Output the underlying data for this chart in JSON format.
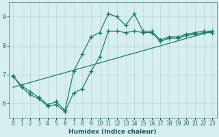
{
  "title": "",
  "xlabel": "Humidex (Indice chaleur)",
  "xlim": [
    -0.5,
    23.5
  ],
  "ylim": [
    5.5,
    9.5
  ],
  "yticks": [
    6,
    7,
    8,
    9
  ],
  "xticks": [
    0,
    1,
    2,
    3,
    4,
    5,
    6,
    7,
    8,
    9,
    10,
    11,
    12,
    13,
    14,
    15,
    16,
    17,
    18,
    19,
    20,
    21,
    22,
    23
  ],
  "bg_color": "#d6eeee",
  "line_color": "#1a7a6e",
  "grid_color": "#b8d8d8",
  "upper_x": [
    0,
    1,
    2,
    3,
    4,
    5,
    6,
    7,
    8,
    9,
    10,
    11,
    12,
    13,
    14,
    15,
    16,
    17,
    18,
    19,
    20,
    21,
    22,
    23
  ],
  "upper_y": [
    6.95,
    6.6,
    6.4,
    6.2,
    5.95,
    6.05,
    5.75,
    7.1,
    7.7,
    8.3,
    8.45,
    9.1,
    9.0,
    8.7,
    9.1,
    8.5,
    8.5,
    8.2,
    8.3,
    8.3,
    8.4,
    8.45,
    8.5,
    8.5
  ],
  "lower_x": [
    0,
    1,
    2,
    3,
    4,
    5,
    6,
    7,
    8,
    9,
    10,
    11,
    12,
    13,
    14,
    15,
    16,
    17,
    18,
    19,
    20,
    21,
    22,
    23
  ],
  "lower_y": [
    6.95,
    6.55,
    6.3,
    6.15,
    5.9,
    5.95,
    5.7,
    6.35,
    6.5,
    7.1,
    7.6,
    8.5,
    8.5,
    8.45,
    8.5,
    8.45,
    8.45,
    8.15,
    8.25,
    8.25,
    8.35,
    8.4,
    8.45,
    8.45
  ],
  "trend_x": [
    0,
    23
  ],
  "trend_y": [
    6.55,
    8.5
  ],
  "marker_size": 2.5,
  "linewidth": 0.9
}
